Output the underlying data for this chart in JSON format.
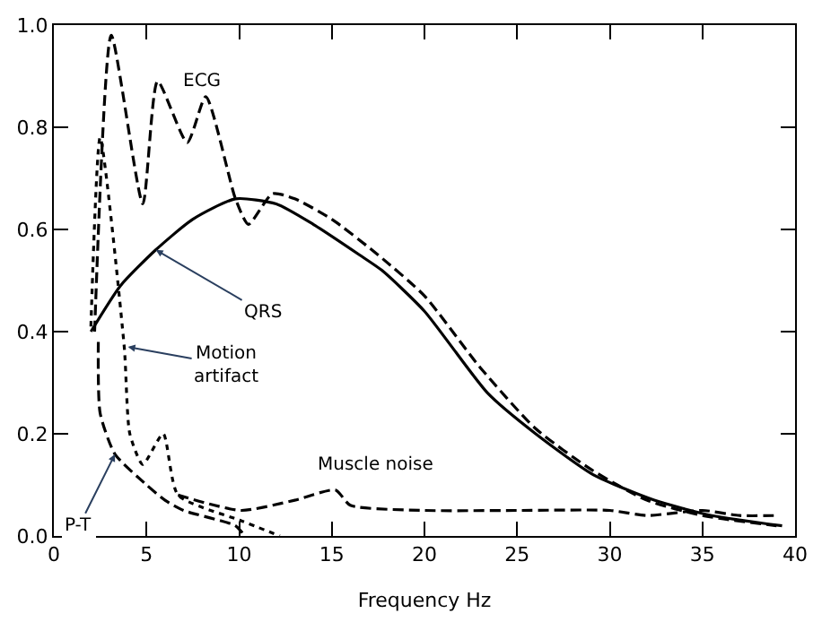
{
  "chart_data": {
    "type": "line",
    "xlabel": "Frequency Hz",
    "xlim": [
      0,
      40
    ],
    "xticks": [
      0,
      5,
      10,
      15,
      20,
      25,
      30,
      35,
      40
    ],
    "ylim": [
      0,
      1.0
    ],
    "yticks": [
      {
        "value": 0,
        "label": "0.0"
      },
      0.2,
      0.4,
      0.6,
      {
        "value": 0.8,
        "label": "0.8"
      },
      {
        "value": 1.0,
        "label": "1.0"
      }
    ],
    "legend": false,
    "marker": "none",
    "series": [
      {
        "color": "#000000",
        "line_style": "dashed",
        "x": [
          2.2,
          3.1,
          4.8,
          5.6,
          7.2,
          8.2,
          9.8,
          10.5,
          11.8,
          13,
          15,
          17.5,
          20,
          23,
          26,
          29,
          32,
          35,
          39
        ],
        "values": [
          0.4,
          0.98,
          0.65,
          0.89,
          0.77,
          0.86,
          0.66,
          0.61,
          0.67,
          0.66,
          0.62,
          0.55,
          0.47,
          0.33,
          0.21,
          0.13,
          0.07,
          0.04,
          0.02
        ]
      },
      {
        "color": "#000000",
        "line_style": "solid",
        "x": [
          2.0,
          3.6,
          5.5,
          7.5,
          9.8,
          12,
          14,
          16.5,
          17.7,
          20,
          23.4,
          26,
          29.1,
          32.4,
          35.5,
          39.3
        ],
        "values": [
          0.4,
          0.49,
          0.56,
          0.62,
          0.66,
          0.65,
          0.61,
          0.55,
          0.52,
          0.44,
          0.28,
          0.2,
          0.12,
          0.07,
          0.04,
          0.02
        ]
      },
      {
        "color": "#000000",
        "line_style": "dotted",
        "x": [
          2.0,
          2.5,
          3.8,
          4.1,
          4.8,
          5.9,
          6.7,
          10.1,
          12.2
        ],
        "values": [
          0.41,
          0.78,
          0.37,
          0.2,
          0.14,
          0.2,
          0.08,
          0.03,
          0.0
        ]
      },
      {
        "color": "#000000",
        "line_style": "dashed",
        "x": [
          2.4,
          2.5,
          3.3,
          5.0,
          6.0,
          7.0,
          9.8,
          10.3
        ],
        "values": [
          0.38,
          0.24,
          0.16,
          0.1,
          0.07,
          0.05,
          0.02,
          0.0
        ]
      },
      {
        "color": "#000000",
        "line_style": "dashed",
        "x": [
          6.7,
          10.1,
          13,
          15.2,
          16,
          20,
          25,
          30,
          32,
          35,
          37,
          39
        ],
        "values": [
          0.08,
          0.05,
          0.07,
          0.09,
          0.06,
          0.05,
          0.05,
          0.05,
          0.04,
          0.05,
          0.04,
          0.04
        ]
      }
    ],
    "annotations": [
      {
        "text": "ECG",
        "x": 7.2,
        "y": 0.77
      },
      {
        "text": "QRS",
        "x": 5.5,
        "y": 0.56
      },
      {
        "text": "Motion\nartifact",
        "x": 4.0,
        "y": 0.37
      },
      {
        "text": "P-T",
        "x": 3.3,
        "y": 0.16
      },
      {
        "text": "Muscle noise",
        "x": 15.2,
        "y": 0.09
      }
    ]
  }
}
